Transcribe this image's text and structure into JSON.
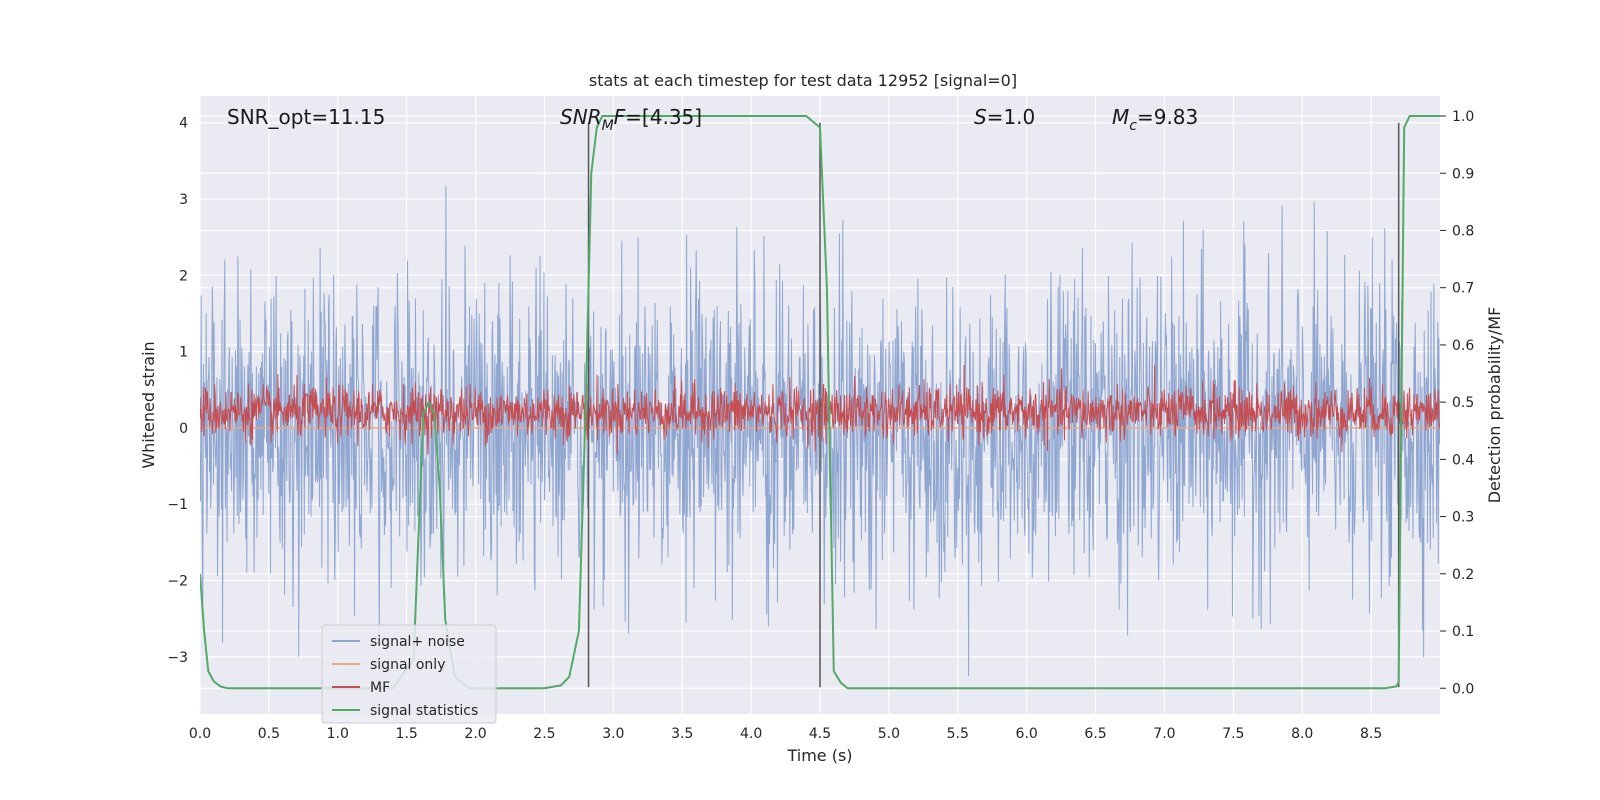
{
  "chart_data": {
    "type": "line",
    "title": "stats at each timestep for test data 12952 [signal=0]",
    "xlabel": "Time (s)",
    "ylabel": "Whitened strain",
    "ylabel_right": "Detection probability/MF",
    "xlim": [
      0.0,
      9.0
    ],
    "ylim": [
      -3.75,
      4.35
    ],
    "ylim_right": [
      -0.045,
      1.035
    ],
    "grid": true,
    "legend_position": "lower-left",
    "x_ticks": [
      "0.0",
      "0.5",
      "1.0",
      "1.5",
      "2.0",
      "2.5",
      "3.0",
      "3.5",
      "4.0",
      "4.5",
      "5.0",
      "5.5",
      "6.0",
      "6.5",
      "7.0",
      "7.5",
      "8.0",
      "8.5"
    ],
    "y_ticks": [
      "4",
      "3",
      "2",
      "1",
      "0",
      "−1",
      "−2",
      "−3"
    ],
    "y_ticks_right": [
      "1.0",
      "0.9",
      "0.8",
      "0.7",
      "0.6",
      "0.5",
      "0.4",
      "0.3",
      "0.2",
      "0.1",
      "0.0"
    ],
    "annotations": [
      {
        "id": "snr-opt",
        "text": "SNR_opt=11.15"
      },
      {
        "id": "snr-mf",
        "text": "=[4.35]",
        "math_base": "SNR",
        "math_sub": "M",
        "math_tail": "F"
      },
      {
        "id": "s-value",
        "text": "=1.0",
        "math_base": "S"
      },
      {
        "id": "mc-value",
        "text": "=9.83",
        "math_base": "M",
        "math_sub": "c"
      }
    ],
    "vertical_lines": [
      {
        "x": 2.82,
        "y_top": 4.0,
        "y_bottom": -3.4
      },
      {
        "x": 4.5,
        "y_top": 4.0,
        "y_bottom": -3.4
      },
      {
        "x": 8.7,
        "y_top": 4.0,
        "y_bottom": -3.4
      }
    ],
    "series": [
      {
        "name": "signal+ noise",
        "color": "#8fa6d1",
        "kind": "noise",
        "sigma": 1.0,
        "n_points": 2200,
        "envelope_max": 4.0,
        "envelope_min": -3.4
      },
      {
        "name": "signal only",
        "color": "#e8a98b",
        "kind": "flat",
        "value": 0.0
      },
      {
        "name": "MF",
        "color": "#c44e52",
        "kind": "noise",
        "axis": "right",
        "baseline": 0.483,
        "sigma": 0.023,
        "n_points": 2200
      },
      {
        "name": "signal statistics",
        "color": "#55a868",
        "kind": "line",
        "axis": "right",
        "x": [
          0.0,
          0.03,
          0.06,
          0.1,
          0.15,
          0.2,
          0.3,
          0.5,
          1.0,
          1.4,
          1.55,
          1.6,
          1.62,
          1.66,
          1.7,
          1.74,
          1.78,
          1.85,
          1.95,
          2.1,
          2.5,
          2.62,
          2.68,
          2.75,
          2.8,
          2.84,
          2.88,
          2.92,
          2.98,
          3.05,
          3.5,
          4.0,
          4.4,
          4.45,
          4.5,
          4.55,
          4.6,
          4.65,
          4.7,
          4.8,
          5.0,
          6.0,
          7.0,
          8.0,
          8.6,
          8.68,
          8.7,
          8.72,
          8.74,
          8.78,
          8.85,
          9.0
        ],
        "y": [
          0.2,
          0.1,
          0.03,
          0.012,
          0.003,
          0.0,
          0.0,
          0.0,
          0.0,
          0.0,
          0.05,
          0.35,
          0.48,
          0.5,
          0.48,
          0.35,
          0.12,
          0.02,
          0.0,
          0.0,
          0.0,
          0.005,
          0.02,
          0.1,
          0.5,
          0.9,
          0.98,
          1.0,
          1.0,
          1.0,
          1.0,
          1.0,
          1.0,
          0.99,
          0.98,
          0.7,
          0.03,
          0.01,
          0.0,
          0.0,
          0.0,
          0.0,
          0.0,
          0.0,
          0.0,
          0.003,
          0.01,
          0.5,
          0.98,
          1.0,
          1.0,
          1.0
        ]
      }
    ]
  }
}
